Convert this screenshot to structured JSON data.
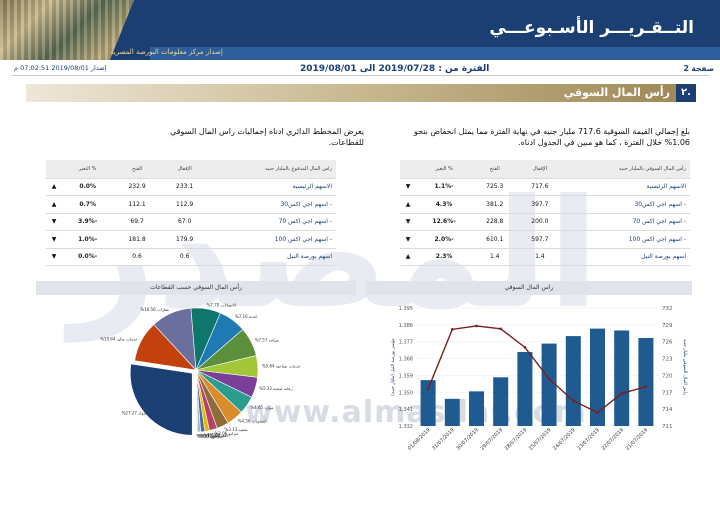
{
  "header": {
    "title": "التــقـريـــر الأسـبوعـــي",
    "subtitle": "إصدار مركز معلومات البورصة المصرية"
  },
  "meta": {
    "page": "صفحة 2",
    "period": "الفترة من : 2019/07/28 الى 2019/08/01",
    "issued": "إصدار 2019/08/01 07:02:51 م"
  },
  "section": {
    "number": "٢.",
    "title": "رأس المال السوقي"
  },
  "watermark": {
    "text": "المصدر",
    "site": "www.almasdar.com"
  },
  "paragraphs": {
    "right": "بلغ إجمالي القيمة السوقية 717.6 مليار جنيه في نهاية الفترة مما يمثل انخفاض بنحو 1.06% خلال الفترة ، كما هو مبين في الجدول ادناه.",
    "left": "يعرض المخطط الدائري ادناه إجماليات راس المال السوقي للقطاعات."
  },
  "table_right": {
    "headers": [
      "رأس المال السوقي بالمليار جنيه",
      "الإقفال",
      "الفتح",
      "% التغير"
    ],
    "rows": [
      {
        "name": "الاسهم الرئيسية",
        "close": "717.6",
        "open": "725.3",
        "change": "-1.1%",
        "dir": "down"
      },
      {
        "name": "- اسهم اجي اكس30",
        "close": "397.7",
        "open": "381.2",
        "change": "4.3%",
        "dir": "up"
      },
      {
        "name": "- اسهم اجي اكس 70",
        "close": "200.0",
        "open": "228.8",
        "change": "-12.6%",
        "dir": "down"
      },
      {
        "name": "- اسهم اجي اكس 100",
        "close": "597.7",
        "open": "610.1",
        "change": "-2.0%",
        "dir": "down"
      },
      {
        "name": "اسهم بورصة النيل",
        "close": "1.4",
        "open": "1.4",
        "change": "2.3%",
        "dir": "up"
      }
    ]
  },
  "table_left": {
    "headers": [
      "راس المال المدفوع بالمليار جنيه",
      "الإقفال",
      "الفتح",
      "% التغير"
    ],
    "rows": [
      {
        "name": "الاسهم الرئيسية",
        "close": "233.1",
        "open": "232.9",
        "change": "0.0%",
        "dir": "up"
      },
      {
        "name": "- اسهم اجي اكس30",
        "close": "112.9",
        "open": "112.1",
        "change": "0.7%",
        "dir": "up"
      },
      {
        "name": "- اسهم اجي اكس 70",
        "close": "67.0",
        "open": "69.7",
        "change": "-3.9%",
        "dir": "down"
      },
      {
        "name": "- اسهم اجي اكس 100",
        "close": "179.9",
        "open": "181.8",
        "change": "-1.0%",
        "dir": "down"
      },
      {
        "name": "اسهم بورصة النيل",
        "close": "0.6",
        "open": "0.6",
        "change": "-0.0%",
        "dir": "down"
      }
    ]
  },
  "colors": {
    "navy": "#1b3f73",
    "red": "#c0192d",
    "bar": "#1f5b91",
    "line": "#7a1e1e"
  },
  "chart_data": [
    {
      "type": "bar",
      "title": "راس المال السوقي",
      "categories": [
        "21/07/2019",
        "22/07/2019",
        "23/07/2019",
        "24/07/2019",
        "25/07/2019",
        "28/07/2019",
        "29/07/2019",
        "30/07/2019",
        "31/07/2019",
        "01/08/2019"
      ],
      "series": [
        {
          "name": "",
          "kind": "line",
          "axis": "right",
          "values": [
            718.0,
            716.8,
            713.4,
            715.5,
            719.4,
            725.0,
            728.3,
            728.8,
            728.2,
            717.6
          ]
        },
        {
          "name": "",
          "kind": "bar",
          "axis": "left",
          "values": [
            1.379,
            1.383,
            1.384,
            1.38,
            1.376,
            1.3715,
            1.358,
            1.3505,
            1.3465,
            1.3565
          ]
        }
      ],
      "y_right_label": "راس المال السوقي مليار جنيه",
      "y_left_label": "مؤشر بورصة النيل (مليار جنيه)",
      "y_right_ticks": [
        "732",
        "729",
        "726",
        "723",
        "720",
        "717",
        "714",
        "711"
      ],
      "y_left_ticks": [
        "1.395",
        "1.386",
        "1.377",
        "1.368",
        "1.359",
        "1.350",
        "1.341",
        "1.332"
      ],
      "y_right_lim": [
        711,
        732
      ],
      "y_left_lim": [
        1.332,
        1.395
      ]
    },
    {
      "type": "pie",
      "title": "رأس المال السوقي حسب القطاعات",
      "slices": [
        {
          "label": "بنوك",
          "value": 27.27
        },
        {
          "label": "خدمات مالية باستثناء البنوك",
          "value": 10.64
        },
        {
          "label": "عقارات",
          "value": 10.56
        },
        {
          "label": "الاتصالات",
          "value": 7.7
        },
        {
          "label": "اغذية ومشروبات",
          "value": 7.16
        },
        {
          "label": "سياحة وترفيه",
          "value": 7.57
        },
        {
          "label": "خدمات ومنتجات صناعية وسيارات",
          "value": 5.64
        },
        {
          "label": "رعاية صحية وادوية",
          "value": 5.32
        },
        {
          "label": "موارد أساسية",
          "value": 4.65
        },
        {
          "label": "كيماويات",
          "value": 4.36
        },
        {
          "label": "تشييد ومواد بناء",
          "value": 3.13
        },
        {
          "label": "منتجات منزلية وشخصية",
          "value": 2.06
        },
        {
          "label": "اعلام",
          "value": 1.19
        },
        {
          "label": "تجزئة",
          "value": 1.08
        },
        {
          "label": "غاز وبترول",
          "value": 0.73
        },
        {
          "label": "مرافق",
          "value": 0.31
        },
        {
          "label": "آخرى",
          "value": 0.15
        }
      ],
      "labels_shown": [
        {
          "t": "%27.27 بنوك"
        },
        {
          "t": "%10.64 خدمات مالية"
        },
        {
          "t": "%10.56 عقارات"
        },
        {
          "t": "%7.70 الاتصالات"
        },
        {
          "t": "%7.16 اغذية"
        },
        {
          "t": "%7.57 سياحة"
        },
        {
          "t": "%5.64 خدمات صناعية"
        },
        {
          "t": "%5.32 رعاية صحية"
        },
        {
          "t": "%4.65 موارد"
        },
        {
          "t": "%4.36 كيماويات"
        },
        {
          "t": "%3.13 تشييد"
        },
        {
          "t": "%2.06 منزلية"
        },
        {
          "t": "%1.19 اعلام"
        },
        {
          "t": "%1.08 تجزئة"
        },
        {
          "t": "%0.73 غاز"
        },
        {
          "t": "%0.31 مرافق"
        },
        {
          "t": "%0.15 آخرى"
        }
      ]
    }
  ]
}
